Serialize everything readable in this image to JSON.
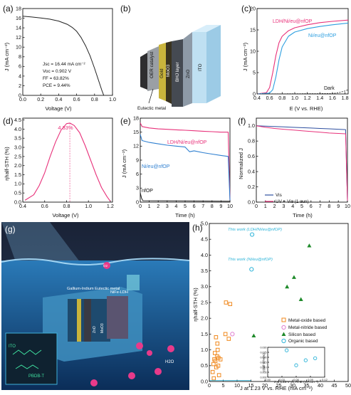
{
  "panels": {
    "a": {
      "label": "(a)",
      "ylabel": "J (mA cm⁻²)",
      "xlabel": "Voltage (V)",
      "xticks": [
        "0.0",
        "0.2",
        "0.4",
        "0.6",
        "0.8",
        "1.0"
      ],
      "yticks": [
        "0",
        "2",
        "4",
        "6",
        "8",
        "10",
        "12",
        "14",
        "16",
        "18"
      ],
      "metrics": [
        "Jsc = 16.44 mA cm⁻²",
        "Voc = 0.902 V",
        "FF = 63.82%",
        "PCE = 9.44%"
      ],
      "color": "#222222"
    },
    "b": {
      "label": "(b)",
      "layers": [
        "OER catalyst",
        "Gold",
        "MoO3",
        "BHJ layer",
        "ZnO",
        "ITO"
      ],
      "eutectic_label": "Eutectic metal"
    },
    "c": {
      "label": "(c)",
      "ylabel": "J (mA cm⁻²)",
      "xlabel": "E (V vs. RHE)",
      "xticks": [
        "0.4",
        "0.6",
        "0.8",
        "1.0",
        "1.2",
        "1.4",
        "1.6",
        "1.8"
      ],
      "yticks": [
        "0",
        "5",
        "10",
        "15",
        "20"
      ],
      "series_labels": [
        "LDH/Ni/eu@nfOP",
        "Ni/eu@nfOP",
        "Dark"
      ],
      "colors": [
        "#e8317a",
        "#2e9fe0",
        "#333333"
      ]
    },
    "d": {
      "label": "(d)",
      "ylabel": "ηhalf-STH (%)",
      "xlabel": "Voltage (V)",
      "xticks": [
        "0.4",
        "0.6",
        "0.8",
        "1.0",
        "1.2"
      ],
      "yticks": [
        "0.0",
        "0.5",
        "1.0",
        "1.5",
        "2.0",
        "2.5",
        "3.0",
        "3.5",
        "4.0",
        "4.5"
      ],
      "peak_label": "4.33%",
      "color": "#e8317a"
    },
    "e": {
      "label": "(e)",
      "ylabel": "J (mA cm⁻²)",
      "xlabel": "Time (h)",
      "xticks": [
        "0",
        "1",
        "2",
        "3",
        "4",
        "5",
        "6",
        "7",
        "8",
        "9",
        "10"
      ],
      "yticks": [
        "0",
        "3",
        "6",
        "9",
        "12",
        "15",
        "18"
      ],
      "series_labels": [
        "LDH/Ni/eu@nfOP",
        "Ni/eu@nfOP"
      ],
      "extra_label": "nfOP",
      "colors": [
        "#e8317a",
        "#2e7fd0"
      ]
    },
    "f": {
      "label": "(f)",
      "ylabel": "Normalized J",
      "xlabel": "Time (h)",
      "xticks": [
        "0",
        "1",
        "2",
        "3",
        "4",
        "5",
        "6",
        "7",
        "8",
        "9",
        "10"
      ],
      "yticks": [
        "0.0",
        "0.2",
        "0.4",
        "0.6",
        "0.8",
        "1.0"
      ],
      "legend": [
        "Vis",
        "UV + Vis (1 sun)"
      ],
      "colors": [
        "#2e4fa0",
        "#e8317a"
      ]
    },
    "g": {
      "label": "(g)",
      "labels": [
        "Gallium-Indium Eutectic metal",
        "NiFe-LDH",
        "ITO",
        "PBDB-T",
        "H2O",
        "O2",
        "ZnO",
        "MoO3"
      ]
    },
    "h": {
      "label": "(h)",
      "ylabel": "ηhalf-STH (%)",
      "xlabel": "J at 1.23 V vs. RHE (mA cm⁻²)",
      "xticks": [
        "0",
        "5",
        "10",
        "15",
        "20",
        "25",
        "30",
        "35",
        "40",
        "45",
        "50"
      ],
      "yticks": [
        "0.0",
        "0.5",
        "1.0",
        "1.5",
        "2.0",
        "2.5",
        "3.0",
        "3.5",
        "4.0",
        "4.5",
        "5.0"
      ],
      "legend": [
        "Metal-oxide based",
        "Metal-nitride based",
        "Silicon based",
        "Organic based"
      ],
      "annotations": [
        "This work (LDH/Ni/eu@nfOP)",
        "This work (Ni/eu@nfOP)"
      ],
      "inset": {
        "xlabel": "J at 1.23 V vs. RHE (mA cm⁻²)",
        "ylabel": "ηhalf-STH(%)",
        "xticks": [
          "0.00",
          "0.03",
          "0.06",
          "0.09",
          "0.12"
        ],
        "yticks": [
          "0.000",
          "0.005",
          "0.010",
          "0.015",
          "0.020",
          "0.025",
          "0.030"
        ]
      },
      "colors": {
        "metal_oxide": "#f0891e",
        "metal_nitride": "#e07fd0",
        "silicon": "#1e8a2a",
        "organic": "#2bb3d8"
      }
    }
  },
  "chart_data": [
    {
      "panel": "a",
      "type": "line",
      "xlabel": "Voltage (V)",
      "ylabel": "J (mA cm⁻²)",
      "xlim": [
        0,
        1.0
      ],
      "ylim": [
        0,
        18
      ],
      "series": [
        {
          "x": [
            0.0,
            0.1,
            0.2,
            0.3,
            0.4,
            0.5,
            0.55,
            0.6,
            0.65,
            0.7,
            0.75,
            0.8,
            0.85,
            0.88,
            0.902
          ],
          "values": [
            16.4,
            16.25,
            16.05,
            15.8,
            15.4,
            14.7,
            14.1,
            13.3,
            12.0,
            10.3,
            8.2,
            5.6,
            2.8,
            1.1,
            0.0
          ]
        }
      ]
    },
    {
      "panel": "c",
      "type": "line",
      "xlabel": "E (V vs. RHE)",
      "ylabel": "J (mA cm⁻²)",
      "xlim": [
        0.4,
        1.85
      ],
      "ylim": [
        0,
        20
      ],
      "series": [
        {
          "name": "LDH/Ni/eu@nfOP",
          "x": [
            0.4,
            0.55,
            0.6,
            0.65,
            0.7,
            0.75,
            0.8,
            0.9,
            1.0,
            1.2,
            1.4,
            1.6,
            1.85
          ],
          "values": [
            0,
            0.3,
            1.5,
            5.0,
            9.0,
            12.0,
            13.5,
            14.8,
            15.5,
            16.2,
            16.7,
            17.0,
            17.3
          ]
        },
        {
          "name": "Ni/eu@nfOP",
          "x": [
            0.4,
            0.6,
            0.65,
            0.7,
            0.75,
            0.8,
            0.9,
            1.0,
            1.2,
            1.4,
            1.6,
            1.85
          ],
          "values": [
            0,
            0.2,
            1.0,
            4.0,
            8.0,
            11.0,
            13.5,
            14.5,
            15.3,
            15.8,
            16.2,
            16.6
          ]
        },
        {
          "name": "Dark",
          "x": [
            0.4,
            1.6,
            1.7,
            1.8,
            1.85
          ],
          "values": [
            0,
            0.1,
            0.3,
            0.7,
            1.0
          ]
        }
      ]
    },
    {
      "panel": "d",
      "type": "line",
      "xlabel": "Voltage (V)",
      "ylabel": "ηhalf-STH (%)",
      "xlim": [
        0.4,
        1.22
      ],
      "ylim": [
        0,
        4.6
      ],
      "series": [
        {
          "x": [
            0.42,
            0.5,
            0.55,
            0.6,
            0.65,
            0.7,
            0.75,
            0.8,
            0.83,
            0.87,
            0.92,
            0.97,
            1.02,
            1.07,
            1.12,
            1.17,
            1.2
          ],
          "values": [
            0.1,
            0.4,
            0.9,
            1.6,
            2.5,
            3.3,
            3.95,
            4.3,
            4.33,
            4.2,
            3.8,
            3.1,
            2.3,
            1.5,
            0.8,
            0.3,
            0.05
          ]
        }
      ]
    },
    {
      "panel": "e",
      "type": "line",
      "xlabel": "Time (h)",
      "ylabel": "J (mA cm⁻²)",
      "xlim": [
        0,
        10
      ],
      "ylim": [
        0,
        18
      ],
      "series": [
        {
          "name": "LDH/Ni/eu@nfOP",
          "x": [
            0,
            0.2,
            1,
            2,
            3,
            4,
            5,
            6,
            7,
            8,
            9,
            9.8,
            10
          ],
          "values": [
            17.0,
            16.2,
            15.9,
            15.7,
            15.6,
            15.5,
            15.4,
            15.3,
            15.2,
            15.1,
            15.0,
            15.0,
            0.4
          ]
        },
        {
          "name": "Ni/eu@nfOP",
          "x": [
            0,
            0.2,
            1,
            2,
            3,
            4,
            5,
            5.5,
            6,
            7,
            8,
            9,
            9.8,
            10
          ],
          "values": [
            14.5,
            13.2,
            12.8,
            12.5,
            12.2,
            12.0,
            11.8,
            10.8,
            11.0,
            10.6,
            10.3,
            10.0,
            9.8,
            0.4
          ]
        },
        {
          "name": "nfOP",
          "x": [
            0,
            0.15,
            0.3,
            10
          ],
          "values": [
            2.0,
            0.8,
            0.3,
            0.2
          ]
        }
      ]
    },
    {
      "panel": "f",
      "type": "line",
      "xlabel": "Time (h)",
      "ylabel": "Normalized J",
      "xlim": [
        0,
        10
      ],
      "ylim": [
        0,
        1.1
      ],
      "series": [
        {
          "name": "Vis",
          "x": [
            0,
            1,
            2,
            3,
            4,
            5,
            6,
            7,
            8,
            9,
            9.8,
            10
          ],
          "values": [
            1.0,
            0.995,
            0.99,
            0.985,
            0.98,
            0.975,
            0.97,
            0.965,
            0.96,
            0.955,
            0.95,
            0.02
          ]
        },
        {
          "name": "UV + Vis (1 sun)",
          "x": [
            0,
            1,
            2,
            3,
            4,
            5,
            6,
            7,
            8,
            9,
            9.8,
            10
          ],
          "values": [
            1.0,
            0.98,
            0.965,
            0.955,
            0.945,
            0.935,
            0.925,
            0.915,
            0.905,
            0.9,
            0.895,
            0.02
          ]
        }
      ]
    },
    {
      "panel": "h",
      "type": "scatter",
      "xlabel": "J at 1.23 V vs. RHE (mA cm⁻²)",
      "ylabel": "ηhalf-STH (%)",
      "xlim": [
        0,
        50
      ],
      "ylim": [
        0,
        5.0
      ],
      "series": [
        {
          "name": "Metal-oxide based",
          "x": [
            1.2,
            1.5,
            1.8,
            2.0,
            2.2,
            2.5,
            2.8,
            3.0,
            3.2,
            3.5,
            2.4,
            2.9,
            3.3,
            6.0,
            7.5,
            5.8,
            7.0,
            4.0,
            1.6
          ],
          "values": [
            0.3,
            0.55,
            0.7,
            0.9,
            0.65,
            0.45,
            0.8,
            1.0,
            0.5,
            0.2,
            1.4,
            1.2,
            0.75,
            2.5,
            2.45,
            1.5,
            1.35,
            0.7,
            0.1
          ]
        },
        {
          "name": "Metal-nitride based",
          "x": [
            8.3
          ],
          "values": [
            1.5
          ]
        },
        {
          "name": "Silicon based",
          "x": [
            16.0,
            28.0,
            30.5,
            33.0,
            36.0
          ],
          "values": [
            1.45,
            3.0,
            3.3,
            2.6,
            4.3
          ]
        },
        {
          "name": "Organic based",
          "x": [
            15.4,
            15.2,
            0.04,
            0.06,
            0.08,
            0.1
          ],
          "values": [
            4.65,
            3.55,
            0.027,
            0.012,
            0.017,
            0.019
          ]
        }
      ]
    }
  ]
}
